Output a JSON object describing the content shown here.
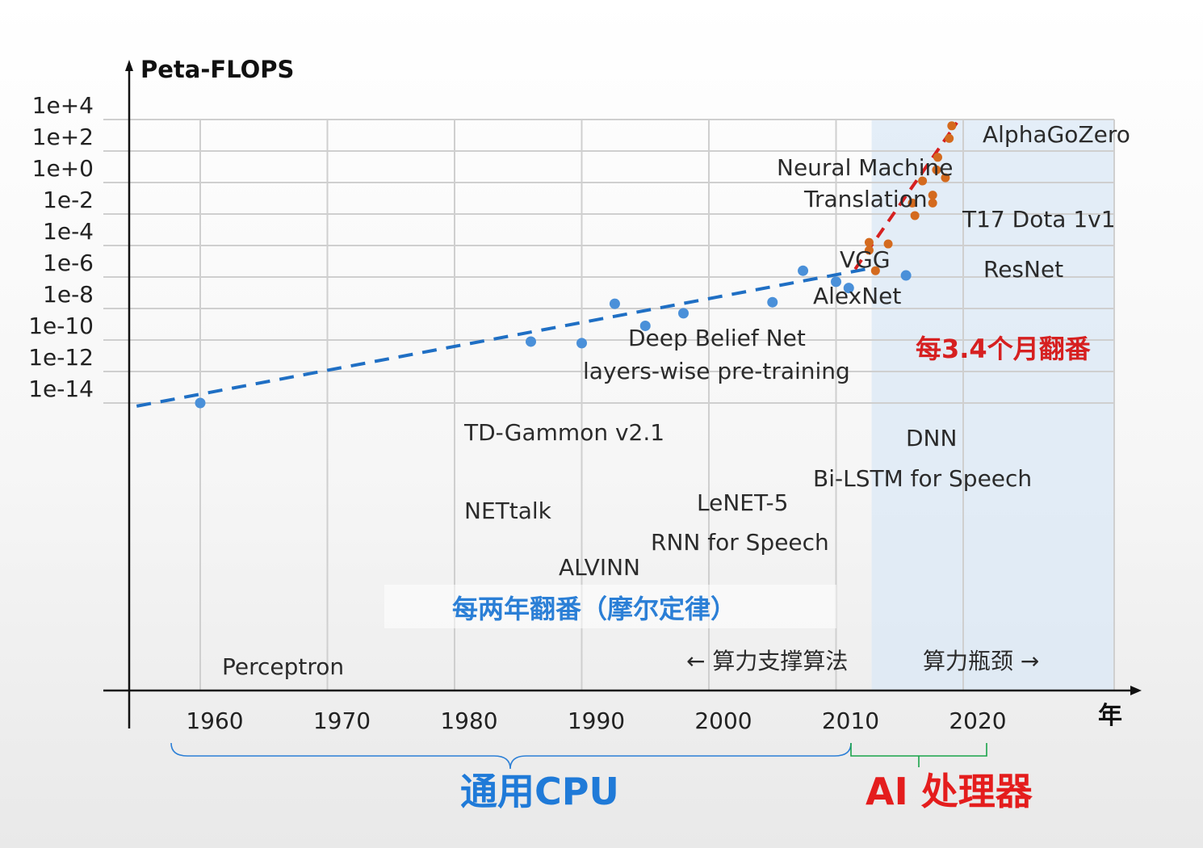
{
  "chart_data": {
    "type": "scatter",
    "ylabel": "Peta-FLOPS",
    "xlabel": "年",
    "x_ticks": [
      1960,
      1970,
      1980,
      1990,
      2000,
      2010,
      2020
    ],
    "y_ticks": [
      "1e+4",
      "1e+2",
      "1e+0",
      "1e-2",
      "1e-4",
      "1e-6",
      "1e-8",
      "1e-10",
      "1e-12",
      "1e-14"
    ],
    "y_scale": "log",
    "xlim": [
      1953,
      2030
    ],
    "ylim_exponent": [
      -14,
      4
    ],
    "grid": true,
    "colors": {
      "cpu": "#4a90d9",
      "ai": "#d46a1e",
      "trend_cpu": "#1f6fc4",
      "trend_ai": "#d62020",
      "ai_region": "#dbe8f5"
    },
    "series": [
      {
        "points": [
          {
            "x": 1960.0,
            "y": -14.0
          },
          {
            "x": 1986.0,
            "y": -10.1
          },
          {
            "x": 1990.0,
            "y": -10.2
          },
          {
            "x": 1992.6,
            "y": -7.7
          },
          {
            "x": 1995.0,
            "y": -9.1
          },
          {
            "x": 1998.0,
            "y": -8.3
          },
          {
            "x": 2005.0,
            "y": -7.6
          },
          {
            "x": 2007.4,
            "y": -5.6
          },
          {
            "x": 2010.0,
            "y": -6.3
          },
          {
            "x": 2011.0,
            "y": -6.7
          },
          {
            "x": 2015.5,
            "y": -5.9
          }
        ]
      },
      {
        "points": [
          {
            "x": 2012.6,
            "y": -4.3
          },
          {
            "x": 2012.6,
            "y": -3.8
          },
          {
            "x": 2013.1,
            "y": -5.6
          },
          {
            "x": 2014.1,
            "y": -3.9
          },
          {
            "x": 2016.0,
            "y": -1.3
          },
          {
            "x": 2016.2,
            "y": -2.1
          },
          {
            "x": 2016.8,
            "y": 0.1
          },
          {
            "x": 2017.6,
            "y": -0.8
          },
          {
            "x": 2017.6,
            "y": -1.3
          },
          {
            "x": 2017.9,
            "y": 0.8
          },
          {
            "x": 2018.0,
            "y": 1.6
          },
          {
            "x": 2018.6,
            "y": 0.3
          },
          {
            "x": 2018.9,
            "y": 2.8
          },
          {
            "x": 2019.1,
            "y": 3.6
          }
        ]
      }
    ],
    "trends": [
      {
        "name": "每两年翻番（摩尔定律）",
        "from": {
          "x": 1955.0,
          "y": -14.2
        },
        "to": {
          "x": 2013.0,
          "y": -5.4
        }
      },
      {
        "name": "每3.4个月翻番",
        "from": {
          "x": 2011.5,
          "y": -5.5
        },
        "to": {
          "x": 2019.5,
          "y": 3.8
        }
      }
    ],
    "annotations": [
      "Perceptron",
      "NETtalk",
      "ALVINN",
      "TD-Gammon v2.1",
      "LeNET-5",
      "RNN for Speech",
      "Deep Belief Net",
      "layers-wise pre-training",
      "Bi-LSTM for Speech",
      "DNN",
      "AlexNet",
      "VGG",
      "ResNet",
      "Neural Machine",
      "Translation",
      "T17 Dota 1v1",
      "AlphaGoZero"
    ],
    "notes": {
      "moore": "每两年翻番（摩尔定律）",
      "ai_rate": "每3.4个月翻番",
      "left_arrow": "←  算力支撑算法",
      "right_arrow": "算力瓶颈 →",
      "cpu_era": "通用CPU",
      "ai_era": "AI 处理器"
    }
  }
}
